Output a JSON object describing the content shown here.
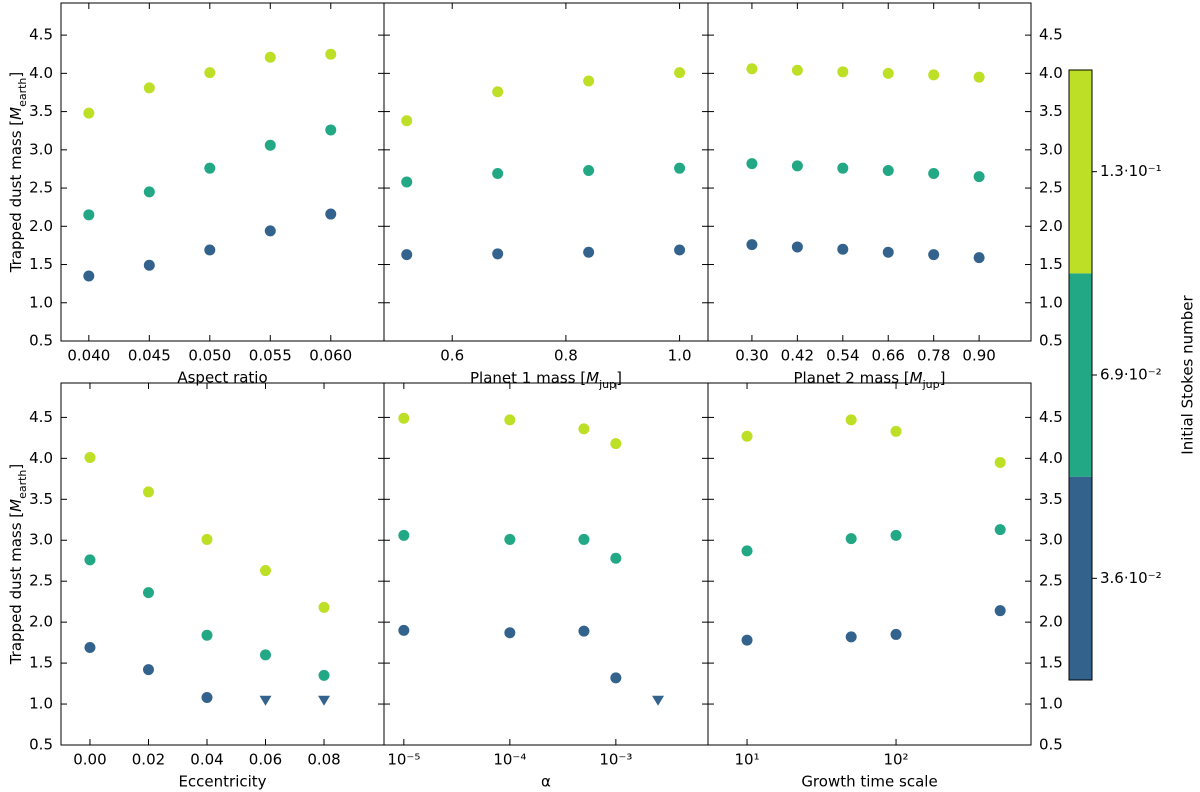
{
  "chart_data": [
    {
      "type": "scatter",
      "xlabel": "Aspect ratio",
      "ylabel": [
        "Trapped dust mass [",
        "M",
        "earth",
        "]"
      ],
      "ytick_side": "left",
      "x": [
        0.04,
        0.045,
        0.05,
        0.055,
        0.06
      ],
      "xlim": [
        0.0377,
        0.0644
      ],
      "xticks": [
        {
          "value": 0.04,
          "label": "0.040"
        },
        {
          "value": 0.045,
          "label": "0.045"
        },
        {
          "value": 0.05,
          "label": "0.050"
        },
        {
          "value": 0.055,
          "label": "0.055"
        },
        {
          "value": 0.06,
          "label": "0.060"
        }
      ],
      "ylim": [
        0.5,
        4.92
      ],
      "yticks": [
        0.5,
        {
          "value": 1,
          "label": "1.0"
        },
        1.5,
        {
          "value": 2,
          "label": "2.0"
        },
        2.5,
        {
          "value": 3,
          "label": "3.0"
        },
        3.5,
        {
          "value": 4,
          "label": "4.0"
        },
        4.5
      ],
      "series": [
        {
          "color": "#bddf26",
          "values": [
            3.48,
            3.81,
            4.01,
            4.21,
            4.25
          ]
        },
        {
          "color": "#22a884",
          "values": [
            2.15,
            2.45,
            2.76,
            3.06,
            3.26
          ]
        },
        {
          "color": "#33638d",
          "values": [
            1.35,
            1.49,
            1.69,
            1.94,
            2.16
          ]
        }
      ]
    },
    {
      "type": "scatter",
      "xlabel": [
        "Planet 1 mass [",
        "M",
        "jup",
        "]"
      ],
      "ytick_side": "none",
      "x": [
        0.52,
        0.68,
        0.84,
        1.0
      ],
      "xlim": [
        0.48,
        1.05
      ],
      "xticks": [
        0.6,
        0.8,
        {
          "value": 1,
          "label": "1.0"
        }
      ],
      "ylim": [
        0.5,
        4.92
      ],
      "yticks": [
        0.5,
        {
          "value": 1,
          "label": "1.0"
        },
        1.5,
        {
          "value": 2,
          "label": "2.0"
        },
        2.5,
        {
          "value": 3,
          "label": "3.0"
        },
        3.5,
        {
          "value": 4,
          "label": "4.0"
        },
        4.5
      ],
      "series": [
        {
          "color": "#bddf26",
          "values": [
            3.38,
            3.76,
            3.9,
            4.01
          ]
        },
        {
          "color": "#22a884",
          "values": [
            2.58,
            2.69,
            2.73,
            2.76
          ]
        },
        {
          "color": "#33638d",
          "values": [
            1.63,
            1.64,
            1.66,
            1.69
          ]
        }
      ]
    },
    {
      "type": "scatter",
      "xlabel": [
        "Planet 2 mass [",
        "M",
        "jup",
        "]"
      ],
      "ytick_side": "right",
      "x": [
        0.3,
        0.42,
        0.54,
        0.66,
        0.78,
        0.9
      ],
      "xlim": [
        0.184,
        1.037
      ],
      "xticks": [
        {
          "value": 0.3,
          "label": "0.30"
        },
        0.42,
        0.54,
        0.66,
        0.78,
        {
          "value": 0.9,
          "label": "0.90"
        }
      ],
      "ylim": [
        0.5,
        4.92
      ],
      "yticks": [
        0.5,
        {
          "value": 1,
          "label": "1.0"
        },
        1.5,
        {
          "value": 2,
          "label": "2.0"
        },
        2.5,
        {
          "value": 3,
          "label": "3.0"
        },
        3.5,
        {
          "value": 4,
          "label": "4.0"
        },
        4.5
      ],
      "series": [
        {
          "color": "#bddf26",
          "values": [
            4.06,
            4.04,
            4.02,
            4.0,
            3.98,
            3.95
          ]
        },
        {
          "color": "#22a884",
          "values": [
            2.82,
            2.79,
            2.76,
            2.73,
            2.69,
            2.65
          ]
        },
        {
          "color": "#33638d",
          "values": [
            1.76,
            1.73,
            1.7,
            1.66,
            1.63,
            1.59
          ]
        }
      ]
    },
    {
      "type": "scatter",
      "xlabel": "Eccentricity",
      "ylabel": [
        "Trapped dust mass [",
        "M",
        "earth",
        "]"
      ],
      "ytick_side": "left",
      "x": [
        0,
        0.02,
        0.04,
        0.06,
        0.08
      ],
      "xlim": [
        -0.0099,
        0.1005
      ],
      "xticks": [
        {
          "value": 0,
          "label": "0.00"
        },
        0.02,
        0.04,
        0.06,
        0.08
      ],
      "ylim": [
        0.5,
        4.92
      ],
      "yticks": [
        0.5,
        {
          "value": 1,
          "label": "1.0"
        },
        1.5,
        {
          "value": 2,
          "label": "2.0"
        },
        2.5,
        {
          "value": 3,
          "label": "3.0"
        },
        3.5,
        {
          "value": 4,
          "label": "4.0"
        },
        4.5
      ],
      "series": [
        {
          "color": "#bddf26",
          "values": [
            4.01,
            3.59,
            3.01,
            2.63,
            2.18
          ]
        },
        {
          "color": "#22a884",
          "values": [
            2.76,
            2.36,
            1.84,
            1.6,
            1.35
          ]
        },
        {
          "color": "#33638d",
          "values": [
            1.69,
            1.42,
            1.08,
            1.04,
            1.04
          ],
          "markers": [
            "o",
            "o",
            "o",
            "v",
            "v"
          ]
        }
      ]
    },
    {
      "type": "scatter",
      "xlabel": "α",
      "ytick_side": "none",
      "xscale": "log",
      "x": [
        1e-05,
        0.0001,
        0.0005,
        0.001,
        0.0025
      ],
      "xlim": [
        6.5e-06,
        0.0074
      ],
      "xticks": [
        {
          "value": 1e-05,
          "label": "10⁻⁵"
        },
        {
          "value": 0.0001,
          "label": "10⁻⁴"
        },
        {
          "value": 0.001,
          "label": "10⁻³"
        }
      ],
      "ylim": [
        0.5,
        4.92
      ],
      "yticks": [
        0.5,
        {
          "value": 1,
          "label": "1.0"
        },
        1.5,
        {
          "value": 2,
          "label": "2.0"
        },
        2.5,
        {
          "value": 3,
          "label": "3.0"
        },
        3.5,
        {
          "value": 4,
          "label": "4.0"
        },
        4.5
      ],
      "series": [
        {
          "color": "#bddf26",
          "values": [
            4.49,
            4.47,
            4.36,
            4.18,
            null
          ]
        },
        {
          "color": "#22a884",
          "values": [
            3.06,
            3.01,
            3.01,
            2.78,
            null
          ]
        },
        {
          "color": "#33638d",
          "values": [
            1.9,
            1.87,
            1.89,
            1.32,
            1.04
          ],
          "markers": [
            "o",
            "o",
            "o",
            "o",
            "v"
          ]
        }
      ]
    },
    {
      "type": "scatter",
      "xlabel": "Growth time scale",
      "ytick_side": "right",
      "xscale": "log",
      "x": [
        10,
        50,
        100,
        500
      ],
      "xlim": [
        5.47,
        805
      ],
      "xticks": [
        {
          "value": 10,
          "label": "10¹"
        },
        {
          "value": 100,
          "label": "10²"
        }
      ],
      "ylim": [
        0.5,
        4.92
      ],
      "yticks": [
        0.5,
        {
          "value": 1,
          "label": "1.0"
        },
        1.5,
        {
          "value": 2,
          "label": "2.0"
        },
        2.5,
        {
          "value": 3,
          "label": "3.0"
        },
        3.5,
        {
          "value": 4,
          "label": "4.0"
        },
        4.5
      ],
      "series": [
        {
          "color": "#bddf26",
          "values": [
            4.27,
            4.47,
            4.33,
            3.95
          ]
        },
        {
          "color": "#22a884",
          "values": [
            2.87,
            3.02,
            3.06,
            3.13
          ]
        },
        {
          "color": "#33638d",
          "values": [
            1.78,
            1.82,
            1.85,
            2.14
          ]
        }
      ]
    }
  ],
  "colorbar": {
    "label": "Initial Stokes number",
    "levels": [
      {
        "label": "3.6·10⁻²",
        "color": "#33638d"
      },
      {
        "label": "6.9·10⁻²",
        "color": "#22a884"
      },
      {
        "label": "1.3·10⁻¹",
        "color": "#bddf26"
      }
    ]
  }
}
